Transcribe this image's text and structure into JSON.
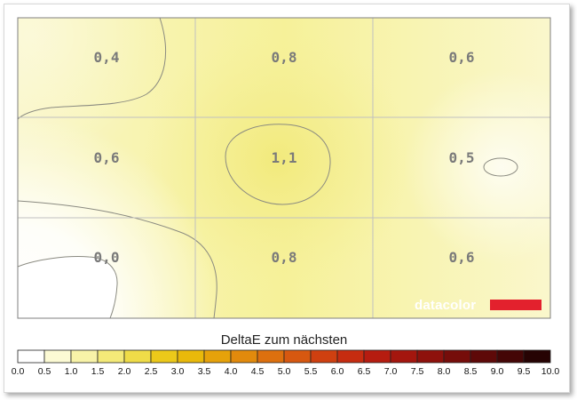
{
  "chart_data": {
    "type": "heatmap",
    "rows": 3,
    "cols": 3,
    "values": [
      [
        "0,4",
        "0,8",
        "0,6"
      ],
      [
        "0,6",
        "1,1",
        "0,5"
      ],
      [
        "0,0",
        "0,8",
        "0,6"
      ]
    ],
    "legend": {
      "title": "DeltaE zum nächsten",
      "ticks": [
        "0.0",
        "0.5",
        "1.0",
        "1.5",
        "2.0",
        "2.5",
        "3.0",
        "3.5",
        "4.0",
        "4.5",
        "5.0",
        "5.5",
        "6.0",
        "6.5",
        "7.0",
        "7.5",
        "8.0",
        "8.5",
        "9.0",
        "9.5",
        "10.0"
      ],
      "colors": [
        "#ffffff",
        "#fcfad4",
        "#f8f3a8",
        "#f4ea78",
        "#efdc48",
        "#ecc91a",
        "#e9b90a",
        "#e6a20a",
        "#e28a0c",
        "#dd700e",
        "#d75810",
        "#cf4010",
        "#c62c10",
        "#b61c10",
        "#a4160e",
        "#8e110c",
        "#760d0a",
        "#5e0908",
        "#440606",
        "#260303"
      ]
    },
    "grid": true
  },
  "branding": {
    "logo_text": "datacolor",
    "accent": "#e3212d"
  }
}
